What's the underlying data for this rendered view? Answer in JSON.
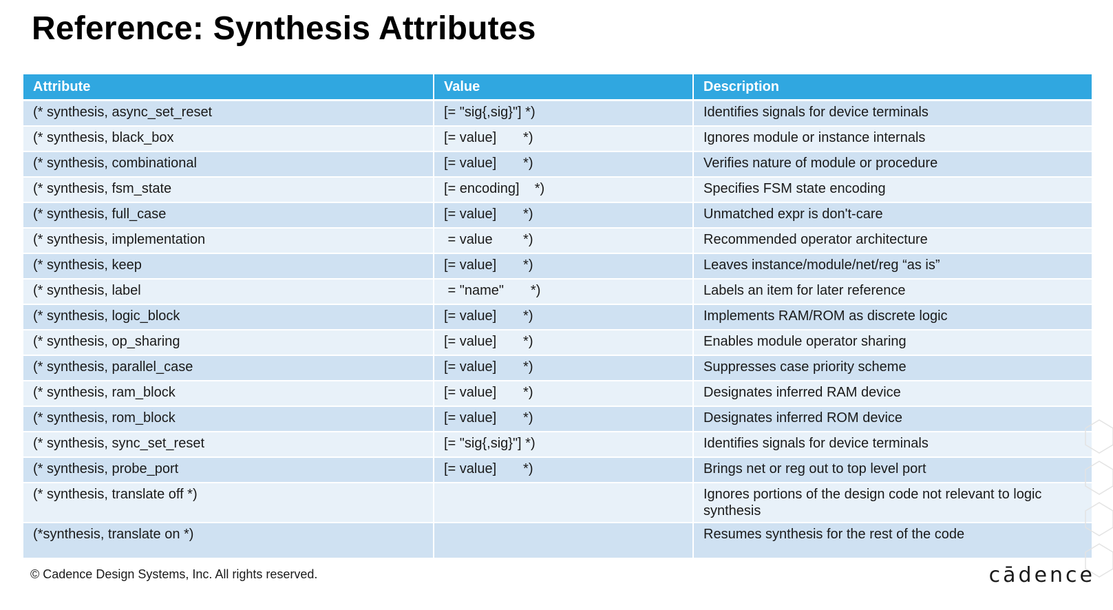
{
  "title": "Reference: Synthesis Attributes",
  "table": {
    "headers": [
      "Attribute",
      "Value",
      "Description"
    ],
    "rows": [
      {
        "attribute": "(* synthesis, async_set_reset",
        "value": "[= \"sig{,sig}\"] *)",
        "description": "Identifies signals for device terminals"
      },
      {
        "attribute": "(* synthesis, black_box",
        "value": "[= value]       *)",
        "description": "Ignores module or instance internals"
      },
      {
        "attribute": "(* synthesis, combinational",
        "value": "[= value]       *)",
        "description": "Verifies nature of module or procedure"
      },
      {
        "attribute": "(* synthesis, fsm_state",
        "value": "[= encoding]    *)",
        "description": "Specifies FSM state encoding"
      },
      {
        "attribute": "(* synthesis, full_case",
        "value": "[= value]       *)",
        "description": "Unmatched expr is don't-care"
      },
      {
        "attribute": "(* synthesis, implementation",
        "value": " = value        *)",
        "description": "Recommended operator architecture"
      },
      {
        "attribute": "(* synthesis, keep",
        "value": "[= value]       *)",
        "description": "Leaves instance/module/net/reg “as is”"
      },
      {
        "attribute": "(* synthesis, label",
        "value": " = \"name\"       *)",
        "description": "Labels an item for later reference"
      },
      {
        "attribute": "(* synthesis, logic_block",
        "value": "[= value]       *)",
        "description": "Implements RAM/ROM as discrete logic"
      },
      {
        "attribute": "(* synthesis, op_sharing",
        "value": "[= value]       *)",
        "description": "Enables module operator sharing"
      },
      {
        "attribute": "(* synthesis, parallel_case",
        "value": "[= value]       *)",
        "description": "Suppresses case priority scheme"
      },
      {
        "attribute": "(* synthesis, ram_block",
        "value": "[= value]       *)",
        "description": "Designates inferred RAM device"
      },
      {
        "attribute": "(* synthesis, rom_block",
        "value": "[= value]       *)",
        "description": "Designates inferred ROM device"
      },
      {
        "attribute": "(* synthesis, sync_set_reset",
        "value": "[= \"sig{,sig}\"] *)",
        "description": "Identifies signals for device terminals"
      },
      {
        "attribute": "(* synthesis, probe_port",
        "value": "[= value]       *)",
        "description": "Brings net or reg out to top level port"
      },
      {
        "attribute": "(* synthesis, translate off *)",
        "value": "",
        "description": "Ignores portions of the design code not relevant to logic synthesis"
      },
      {
        "attribute": "(*synthesis, translate on *)",
        "value": "",
        "description": "Resumes synthesis for the rest of the code"
      }
    ]
  },
  "footer": "© Cadence Design Systems, Inc. All rights reserved.",
  "logo": "cādence",
  "colors": {
    "header_bg": "#30a7e0",
    "row_odd": "#cfe1f2",
    "row_even": "#e8f1f9"
  }
}
